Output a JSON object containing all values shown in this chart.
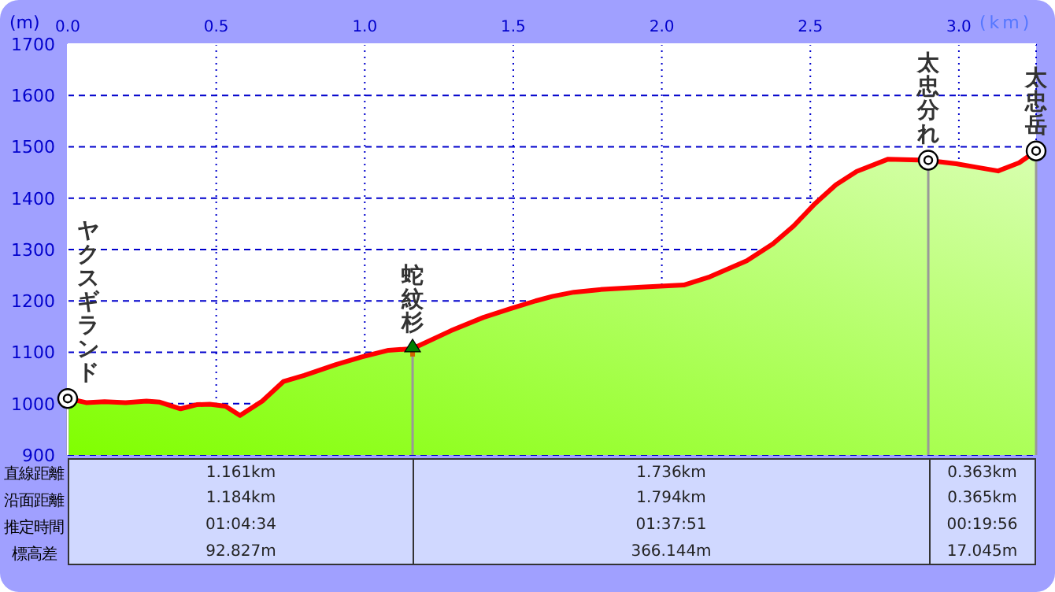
{
  "chart_data": {
    "type": "area",
    "xlabel": "(km)",
    "ylabel": "(m)",
    "x": [
      0,
      0.062,
      0.124,
      0.195,
      0.265,
      0.31,
      0.38,
      0.434,
      0.478,
      0.531,
      0.58,
      0.655,
      0.726,
      0.796,
      0.903,
      0.99,
      1.08,
      1.16,
      1.29,
      1.4,
      1.49,
      1.575,
      1.633,
      1.704,
      1.79,
      1.93,
      2.074,
      2.162,
      2.286,
      2.374,
      2.444,
      2.515,
      2.586,
      2.656,
      2.762,
      2.89,
      2.991,
      3.062,
      3.132,
      3.203,
      3.26
    ],
    "series": [
      {
        "color": "#ff0000",
        "values": [
          1010,
          1002,
          1004,
          1002,
          1005,
          1003,
          990,
          998,
          999,
          995,
          977,
          1005,
          1043,
          1055,
          1076,
          1091,
          1104,
          1107,
          1142,
          1168,
          1185,
          1200,
          1209,
          1217,
          1222,
          1227,
          1231,
          1247,
          1278,
          1311,
          1346,
          1389,
          1426,
          1452,
          1476,
          1474,
          1467,
          1460,
          1453,
          1469,
          1492
        ]
      }
    ],
    "xlim": [
      0,
      3.26
    ],
    "xticks": [
      {
        "value": 0,
        "label": "0.0"
      },
      {
        "value": 0.5,
        "label": "0.5"
      },
      {
        "value": 1,
        "label": "1.0"
      },
      {
        "value": 1.5,
        "label": "1.5"
      },
      {
        "value": 2,
        "label": "2.0"
      },
      {
        "value": 2.5,
        "label": "2.5"
      },
      {
        "value": 3,
        "label": "3.0"
      }
    ],
    "ylim": [
      900,
      1700
    ],
    "yticks": [
      900,
      1000,
      1100,
      1200,
      1300,
      1400,
      1500,
      1600,
      1700
    ],
    "grid": true,
    "annotations": [
      {
        "text": "ヤクスギランド",
        "x": 0,
        "y": 1010
      },
      {
        "text": "蛇紋杉",
        "x": 1.161,
        "y": 1107
      },
      {
        "text": "太忠分れ",
        "x": 2.897,
        "y": 1474
      },
      {
        "text": "太忠岳",
        "x": 3.26,
        "y": 1492
      },
      "直線距離",
      "1.161km",
      "1.736km",
      "0.363km",
      "沿面距離",
      "1.184km",
      "1.794km",
      "0.365km",
      "推定時間",
      "01:04:34",
      "01:37:51",
      "00:19:56",
      "標高差",
      "92.827m",
      "366.144m",
      "17.045m"
    ]
  }
}
